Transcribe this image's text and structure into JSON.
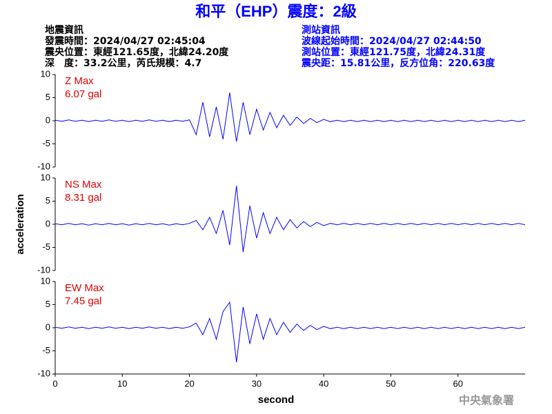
{
  "header": {
    "title": "和平（EHP）震度：2級",
    "left": [
      "地震資訊",
      "發震時間：2024/04/27 02:45:04",
      "震央位置：東經121.65度，北緯24.20度",
      "深　度：33.2公里，芮氏規模：4.7"
    ],
    "right": [
      "測站資訊",
      "波線起始時間：2024/04/27 02:44:50",
      "測站位置：東經121.75度，北緯24.31度",
      "震央距：15.81公里，反方位角：220.63度"
    ],
    "ylabel": "acceleration",
    "xlabel": "second",
    "watermark": "中央氣象署"
  },
  "chart_data": [
    {
      "type": "line",
      "annotation": [
        "Z Max",
        "6.07 gal"
      ],
      "color": "#0000ff",
      "xlim": [
        0,
        70
      ],
      "ylim": [
        -10,
        10
      ],
      "yticks": [
        -10,
        -5,
        0,
        5,
        10
      ],
      "x": [
        0,
        1,
        2,
        3,
        4,
        5,
        6,
        7,
        8,
        9,
        10,
        11,
        12,
        13,
        14,
        15,
        16,
        17,
        18,
        19,
        20,
        21,
        22,
        23,
        24,
        25,
        26,
        27,
        28,
        29,
        30,
        31,
        32,
        33,
        34,
        35,
        36,
        37,
        38,
        39,
        40,
        41,
        42,
        43,
        44,
        45,
        46,
        47,
        48,
        49,
        50,
        51,
        52,
        53,
        54,
        55,
        56,
        57,
        58,
        59,
        60,
        61,
        62,
        63,
        64,
        65,
        66,
        67,
        68,
        69,
        70
      ],
      "values": [
        0.1,
        -0.1,
        0.2,
        -0.1,
        0.1,
        -0.2,
        0.1,
        -0.1,
        0.2,
        -0.1,
        0.1,
        -0.2,
        0.1,
        -0.1,
        0.2,
        -0.1,
        0.1,
        -0.2,
        0.1,
        -0.1,
        0.2,
        -3,
        4,
        -3.5,
        3,
        -4,
        6.07,
        -4.5,
        4,
        -3,
        2.5,
        -2,
        1.8,
        -1.5,
        1.2,
        -1,
        0.8,
        -0.6,
        0.5,
        -0.4,
        0.3,
        -0.2,
        0.1,
        -0.2,
        0.1,
        -0.2,
        0.1,
        -0.2,
        0.1,
        -0.2,
        0.1,
        -0.2,
        0.1,
        -0.2,
        0.1,
        -0.2,
        0.1,
        -0.2,
        0.1,
        -0.2,
        0.1,
        -0.2,
        0.1,
        -0.2,
        0.1,
        -0.2,
        0.1,
        -0.2,
        0.1,
        -0.2,
        0.1
      ]
    },
    {
      "type": "line",
      "annotation": [
        "NS Max",
        "8.31 gal"
      ],
      "color": "#0000ff",
      "xlim": [
        0,
        70
      ],
      "ylim": [
        -10,
        10
      ],
      "yticks": [
        -10,
        -5,
        0,
        5,
        10
      ],
      "x": [
        0,
        1,
        2,
        3,
        4,
        5,
        6,
        7,
        8,
        9,
        10,
        11,
        12,
        13,
        14,
        15,
        16,
        17,
        18,
        19,
        20,
        21,
        22,
        23,
        24,
        25,
        26,
        27,
        28,
        29,
        30,
        31,
        32,
        33,
        34,
        35,
        36,
        37,
        38,
        39,
        40,
        41,
        42,
        43,
        44,
        45,
        46,
        47,
        48,
        49,
        50,
        51,
        52,
        53,
        54,
        55,
        56,
        57,
        58,
        59,
        60,
        61,
        62,
        63,
        64,
        65,
        66,
        67,
        68,
        69,
        70
      ],
      "values": [
        0.1,
        -0.1,
        0.2,
        -0.1,
        0.1,
        -0.2,
        0.1,
        -0.1,
        0.2,
        -0.1,
        0.1,
        -0.2,
        0.1,
        -0.1,
        0.2,
        -0.1,
        0.1,
        -0.2,
        0.1,
        -0.1,
        0.2,
        0.8,
        -1.2,
        1.5,
        -2,
        3,
        -4.5,
        8.31,
        -6,
        4,
        -3,
        2.5,
        -2,
        1.5,
        -1.2,
        1,
        -0.8,
        0.6,
        -0.5,
        0.4,
        -0.3,
        0.2,
        -0.1,
        0.2,
        -0.1,
        0.2,
        -0.1,
        0.2,
        -0.1,
        0.2,
        -0.1,
        0.2,
        -0.1,
        0.2,
        -0.1,
        0.2,
        -0.1,
        0.2,
        -0.1,
        0.2,
        -0.1,
        0.2,
        -0.1,
        0.2,
        -0.1,
        0.2,
        -0.1,
        0.2,
        -0.1,
        0.2,
        -0.1
      ]
    },
    {
      "type": "line",
      "annotation": [
        "EW Max",
        "7.45 gal"
      ],
      "color": "#0000ff",
      "xlim": [
        0,
        70
      ],
      "ylim": [
        -10,
        10
      ],
      "yticks": [
        -10,
        -5,
        0,
        5,
        10
      ],
      "xticks": [
        0,
        10,
        20,
        30,
        40,
        50,
        60
      ],
      "x": [
        0,
        1,
        2,
        3,
        4,
        5,
        6,
        7,
        8,
        9,
        10,
        11,
        12,
        13,
        14,
        15,
        16,
        17,
        18,
        19,
        20,
        21,
        22,
        23,
        24,
        25,
        26,
        27,
        28,
        29,
        30,
        31,
        32,
        33,
        34,
        35,
        36,
        37,
        38,
        39,
        40,
        41,
        42,
        43,
        44,
        45,
        46,
        47,
        48,
        49,
        50,
        51,
        52,
        53,
        54,
        55,
        56,
        57,
        58,
        59,
        60,
        61,
        62,
        63,
        64,
        65,
        66,
        67,
        68,
        69,
        70
      ],
      "values": [
        0.1,
        -0.1,
        0.2,
        -0.1,
        0.1,
        -0.2,
        0.1,
        -0.1,
        0.2,
        -0.1,
        0.1,
        -0.2,
        0.1,
        -0.1,
        0.2,
        -0.1,
        0.1,
        -0.2,
        0.1,
        -0.1,
        0.2,
        1,
        -1.5,
        2,
        -2.5,
        3.5,
        5.5,
        -7.45,
        4.5,
        -3.5,
        3,
        -2.5,
        2,
        -1.5,
        1.2,
        -1,
        0.8,
        -0.6,
        0.5,
        -0.4,
        0.3,
        -0.2,
        0.1,
        -0.2,
        0.1,
        -0.2,
        0.1,
        -0.2,
        0.1,
        -0.2,
        0.1,
        -0.2,
        0.1,
        -0.2,
        0.1,
        -0.2,
        0.1,
        -0.2,
        0.1,
        -0.2,
        0.1,
        -0.2,
        0.1,
        -0.2,
        0.1,
        -0.2,
        0.1,
        -0.2,
        0.1,
        -0.2,
        0.1
      ]
    }
  ]
}
